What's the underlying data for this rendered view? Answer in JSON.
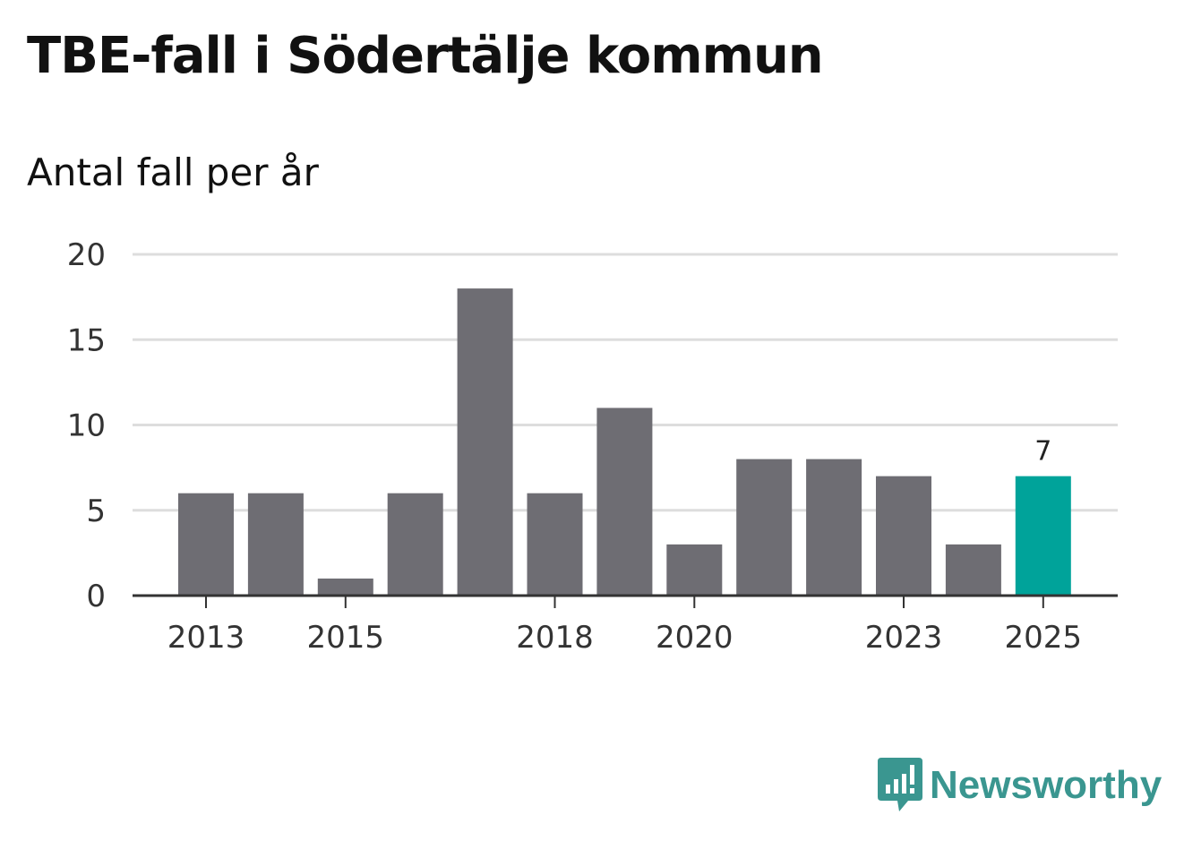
{
  "header": {
    "title": "TBE-fall i Södertälje kommun",
    "subtitle": "Antal fall per år"
  },
  "chart_data": {
    "type": "bar",
    "title": "TBE-fall i Södertälje kommun",
    "subtitle": "Antal fall per år",
    "xlabel": "",
    "ylabel": "",
    "categories": [
      "2013",
      "2014",
      "2015",
      "2016",
      "2017",
      "2018",
      "2019",
      "2020",
      "2021",
      "2022",
      "2023",
      "2024",
      "2025"
    ],
    "values": [
      6,
      6,
      1,
      6,
      18,
      6,
      11,
      3,
      8,
      8,
      7,
      3,
      7
    ],
    "ylim": [
      0,
      20
    ],
    "yticks": [
      0,
      5,
      10,
      15,
      20
    ],
    "xtick_labels": [
      "2013",
      "2015",
      "2018",
      "2020",
      "2023",
      "2025"
    ],
    "highlight_category": "2025",
    "data_labels": [
      {
        "category": "2025",
        "text": "7"
      }
    ],
    "grid": true,
    "colors": {
      "bar": "#6e6d73",
      "highlight": "#00a39a",
      "grid": "#dddddd",
      "axis": "#333333"
    }
  },
  "brand": {
    "name": "Newsworthy",
    "icon": "newsworthy-logo-icon",
    "color": "#3a9690"
  }
}
